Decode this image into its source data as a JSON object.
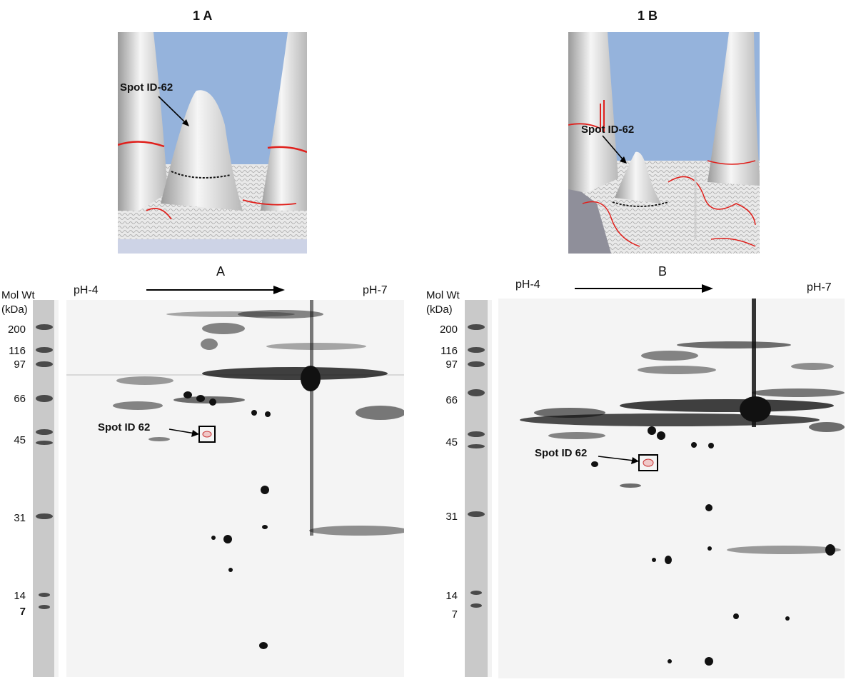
{
  "panels": [
    {
      "id": "A",
      "surface_title": "1 A",
      "surface_spot_label": "Spot ID-62",
      "gel_title": "A",
      "ph_left": "pH-4",
      "ph_right": "pH-7",
      "gel_spot_label": "Spot ID 62"
    },
    {
      "id": "B",
      "surface_title": "1 B",
      "surface_spot_label": "Spot ID-62",
      "gel_title": "B",
      "ph_left": "pH-4",
      "ph_right": "pH-7",
      "gel_spot_label": "Spot ID 62"
    }
  ],
  "mol_wt": {
    "title_line1": "Mol Wt",
    "title_line2": "(kDa)",
    "markers": [
      "200",
      "116",
      "97",
      "66",
      "45",
      "31",
      "14",
      "7"
    ]
  },
  "colors": {
    "sky": "#95b3dc",
    "peak": "#e4e4e4",
    "contour": "#e0201c",
    "spot": "#000000",
    "gel_bg": "#f4f4f4"
  }
}
